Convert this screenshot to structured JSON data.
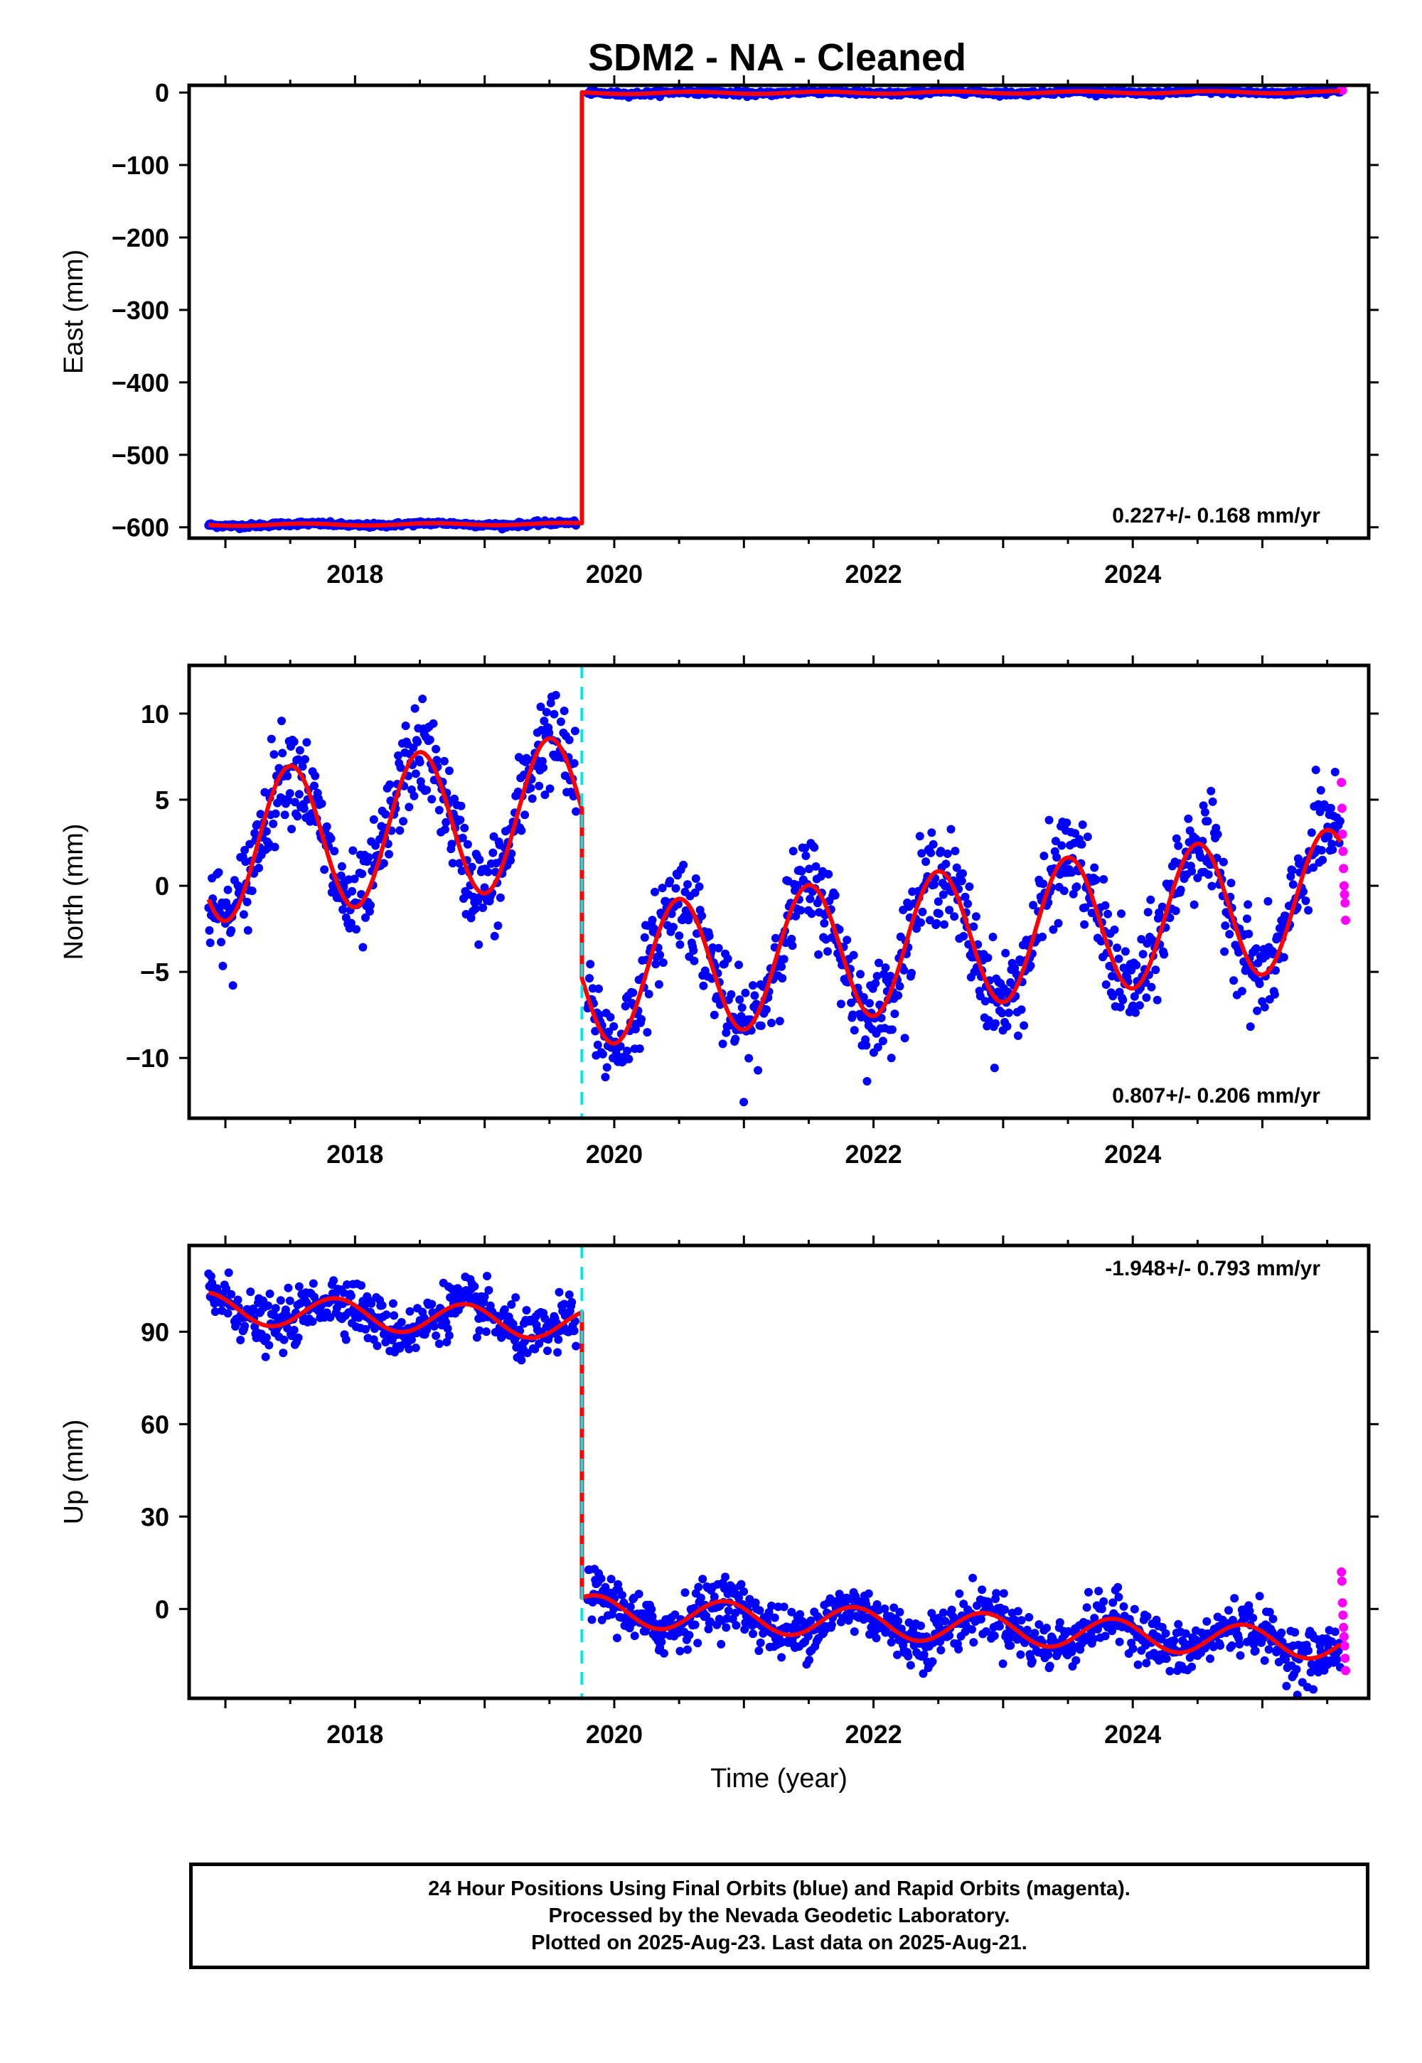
{
  "title": "SDM2  - NA - Cleaned",
  "colors": {
    "final_orbits": "#0000ff",
    "rapid_orbits": "#ff00ff",
    "model": "#ff0000",
    "offset_marker": "#00e5ee",
    "frame": "#000000"
  },
  "footer": {
    "line1": "24 Hour Positions Using Final Orbits (blue) and Rapid Orbits (magenta).",
    "line2": "Processed by the Nevada Geodetic Laboratory.",
    "line3": "Plotted on 2025-Aug-23. Last data on 2025-Aug-21."
  },
  "chart_data": [
    {
      "type": "scatter",
      "panel": "east",
      "ylabel": "East (mm)",
      "xlabel": "",
      "xlim": [
        2016.72,
        2025.82
      ],
      "ylim": [
        -615,
        10
      ],
      "yticks": [
        0,
        -100,
        -200,
        -300,
        -400,
        -500,
        -600
      ],
      "xticks": [
        2018,
        2020,
        2022,
        2024
      ],
      "rate_text": "0.227+/- 0.168 mm/yr",
      "rate_position": "bottom-right",
      "offset_epoch": 2019.75,
      "show_offset_line": false,
      "model": {
        "before": {
          "level": -596,
          "trend_per_yr": 0.5,
          "amplitude": 1.5,
          "phase_peak": 0.6
        },
        "after": {
          "level": 0,
          "trend_per_yr": 0.2,
          "amplitude": 1.5,
          "phase_peak": 0.6
        }
      },
      "scatter_noise_sd": 1.6,
      "rapid_values": [
        4,
        5,
        3
      ]
    },
    {
      "type": "scatter",
      "panel": "north",
      "ylabel": "North (mm)",
      "xlabel": "",
      "xlim": [
        2016.72,
        2025.82
      ],
      "ylim": [
        -13.5,
        12.8
      ],
      "yticks": [
        10,
        5,
        0,
        -5,
        -10
      ],
      "xticks": [
        2018,
        2020,
        2022,
        2024
      ],
      "rate_text": "0.807+/- 0.206 mm/yr",
      "rate_position": "bottom-right",
      "offset_epoch": 2019.75,
      "show_offset_line": true,
      "model": {
        "before": {
          "level": 3.3,
          "trend_per_yr": 0.8,
          "amplitude": 4.3,
          "phase_peak": 0.5
        },
        "after": {
          "level": -3.0,
          "trend_per_yr": 0.8,
          "amplitude": 4.0,
          "phase_peak": 0.5
        }
      },
      "scatter_noise_sd": 1.4,
      "rapid_values": [
        6,
        4.5,
        3,
        2,
        1,
        0,
        -0.5,
        -1,
        -2
      ]
    },
    {
      "type": "scatter",
      "panel": "up",
      "ylabel": "Up (mm)",
      "xlabel": "Time (year)",
      "xlim": [
        2016.72,
        2025.82
      ],
      "ylim": [
        -29,
        118
      ],
      "yticks": [
        90,
        60,
        30,
        0
      ],
      "xticks": [
        2018,
        2020,
        2022,
        2024
      ],
      "rate_text": "-1.948+/- 0.793 mm/yr",
      "rate_position": "top-right",
      "offset_epoch": 2019.75,
      "show_offset_line": true,
      "model": {
        "before": {
          "level": 95,
          "trend_per_yr": -1.9,
          "amplitude": 5,
          "phase_peak": 0.85
        },
        "after": {
          "level": -6.0,
          "trend_per_yr": -1.9,
          "amplitude": 5,
          "phase_peak": 0.85
        }
      },
      "scatter_noise_sd": 4.2,
      "rapid_values": [
        12,
        9,
        2,
        -2,
        -6,
        -9,
        -12,
        -16,
        -20
      ]
    }
  ]
}
